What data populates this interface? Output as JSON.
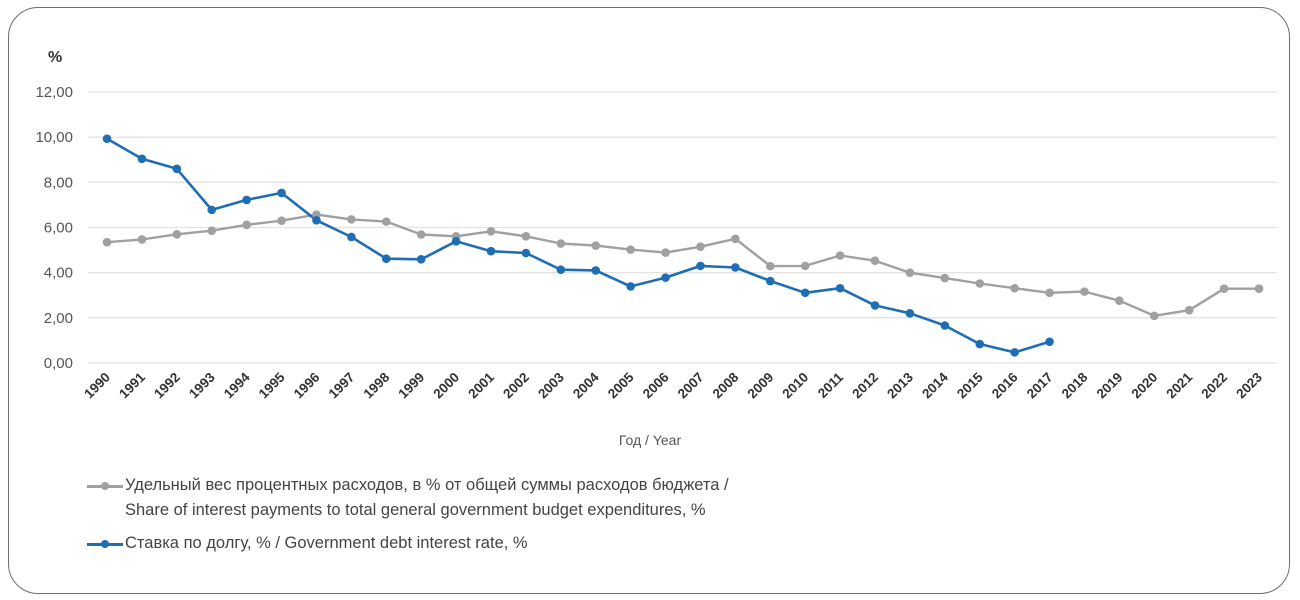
{
  "chart_data": {
    "type": "line",
    "title": "",
    "unit_label": "%",
    "xlabel": "Год / Year",
    "ylabel": "%",
    "ylim": [
      0,
      12
    ],
    "y_ticks": [
      "0,00",
      "2,00",
      "4,00",
      "6,00",
      "8,00",
      "10,00",
      "12,00"
    ],
    "y_tick_values": [
      0,
      2,
      4,
      6,
      8,
      10,
      12
    ],
    "grid": true,
    "legend_position": "bottom-left",
    "categories": [
      "1990",
      "1991",
      "1992",
      "1993",
      "1994",
      "1995",
      "1996",
      "1997",
      "1998",
      "1999",
      "2000",
      "2001",
      "2002",
      "2003",
      "2004",
      "2005",
      "2006",
      "2007",
      "2008",
      "2009",
      "2010",
      "2011",
      "2012",
      "2013",
      "2014",
      "2015",
      "2016",
      "2017",
      "2018",
      "2019",
      "2020",
      "2021",
      "2022",
      "2023"
    ],
    "series": [
      {
        "name": "Удельный вес процентных расходов, в % от общей суммы расходов бюджета / Share of interest payments to total general government budget expenditures, %",
        "legend_lines": [
          "Удельный вес процентных расходов, в % от общей суммы расходов бюджета /",
          "Share of interest payments to total general government budget expenditures, %"
        ],
        "color": "#a0a0a0",
        "values": [
          5.35,
          5.47,
          5.7,
          5.86,
          6.12,
          6.3,
          6.57,
          6.36,
          6.26,
          5.69,
          5.61,
          5.83,
          5.61,
          5.29,
          5.2,
          5.02,
          4.89,
          5.15,
          5.5,
          4.29,
          4.3,
          4.76,
          4.53,
          4.0,
          3.76,
          3.52,
          3.31,
          3.11,
          3.16,
          2.76,
          2.09,
          2.34,
          3.29,
          3.29
        ]
      },
      {
        "name": "Ставка по долгу, % / Government debt interest rate, %",
        "legend_lines": [
          "Ставка по долгу, % / Government debt interest rate, %"
        ],
        "color": "#1f6db3",
        "values": [
          9.93,
          9.04,
          8.6,
          6.78,
          7.22,
          7.53,
          6.32,
          5.58,
          4.62,
          4.59,
          5.39,
          4.95,
          4.87,
          4.13,
          4.1,
          3.39,
          3.78,
          4.3,
          4.23,
          3.63,
          3.11,
          3.31,
          2.55,
          2.2,
          1.66,
          0.84,
          0.47,
          0.94,
          null,
          null,
          null,
          null,
          null,
          null
        ]
      }
    ]
  }
}
